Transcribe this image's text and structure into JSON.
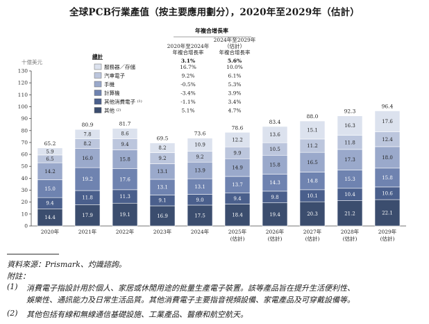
{
  "title": "全球PCB行業產值（按主要應用劃分），2020年至2029年（估計）",
  "chart_data": {
    "type": "bar",
    "stacked": true,
    "ylabel": "十億美元",
    "ylim": [
      0,
      130
    ],
    "yticks": [
      0,
      10,
      20,
      30,
      40,
      50,
      60,
      70,
      80,
      90,
      100,
      110,
      120,
      130
    ],
    "categories": [
      "2020年",
      "2021年",
      "2022年",
      "2023年",
      "2024年",
      "2025年\n(估計)",
      "2026年\n(估計)",
      "2027年\n(估計)",
      "2028年\n(估計)",
      "2029年\n(估計)"
    ],
    "series": [
      {
        "name": "其他",
        "marker": "(2)",
        "color": "#3b4d6e",
        "values": [
          14.4,
          17.9,
          19.1,
          16.9,
          17.5,
          18.4,
          19.4,
          20.3,
          21.2,
          22.1
        ]
      },
      {
        "name": "其他消費電子",
        "marker": "(1)",
        "color": "#4a5f8c",
        "values": [
          9.4,
          11.8,
          11.3,
          9.1,
          9.0,
          9.4,
          9.8,
          10.1,
          10.4,
          10.6
        ]
      },
      {
        "name": "計算機",
        "marker": "",
        "color": "#6f83b0",
        "values": [
          15.0,
          19.2,
          17.6,
          13.1,
          13.1,
          13.7,
          14.3,
          14.8,
          15.3,
          15.8
        ]
      },
      {
        "name": "手機",
        "marker": "",
        "color": "#9aa9cb",
        "values": [
          14.2,
          16.0,
          15.8,
          13.1,
          13.9,
          14.9,
          15.8,
          16.5,
          17.3,
          18.0
        ]
      },
      {
        "name": "汽車電子",
        "marker": "",
        "color": "#bcc6dd",
        "values": [
          6.5,
          8.2,
          9.4,
          9.2,
          9.2,
          9.9,
          10.5,
          11.2,
          11.8,
          12.4
        ]
      },
      {
        "name": "服務器／存儲",
        "marker": "",
        "color": "#dce2ee",
        "values": [
          5.9,
          7.8,
          8.6,
          8.2,
          10.9,
          12.2,
          13.6,
          15.1,
          16.3,
          17.6
        ]
      }
    ],
    "totals": [
      "65.2",
      "80.9",
      "81.7",
      "69.5",
      "73.6",
      "78.6",
      "83.4",
      "88.0",
      "92.3",
      "96.4"
    ],
    "legend_title": "總計",
    "legend_position": "top-left",
    "cagr_header": "年複合增長率",
    "cagr_col1_header": "2020年至2024年\n年複合增長率",
    "cagr_col2_header": "2024年至2029年\n（估計）\n年複合增長率",
    "cagr_total": [
      "3.1%",
      "5.6%"
    ],
    "cagr_rows": [
      [
        "16.7%",
        "10.0%"
      ],
      [
        "9.2%",
        "6.1%"
      ],
      [
        "-0.5%",
        "5.3%"
      ],
      [
        "-3.4%",
        "3.9%"
      ],
      [
        "-1.1%",
        "3.4%"
      ],
      [
        "5.1%",
        "4.7%"
      ]
    ]
  },
  "footnotes": {
    "source": "資料來源：Prismark、灼識諮詢。",
    "notes_label": "附註：",
    "note1_marker": "(1)",
    "note1_line1": "消費電子指設計用於個人、家居或休閒用途的批量生產電子裝置。該等產品旨在提升生活便利性、",
    "note1_line2": "娛樂性、通訊能力及日常生活品質。其他消費電子主要指音視頻設備、家電產品及可穿戴設備等。",
    "note2_marker": "(2)",
    "note2_text": "其他包括有線和無線通信基礎設施、工業產品、醫療和航空航天。"
  }
}
